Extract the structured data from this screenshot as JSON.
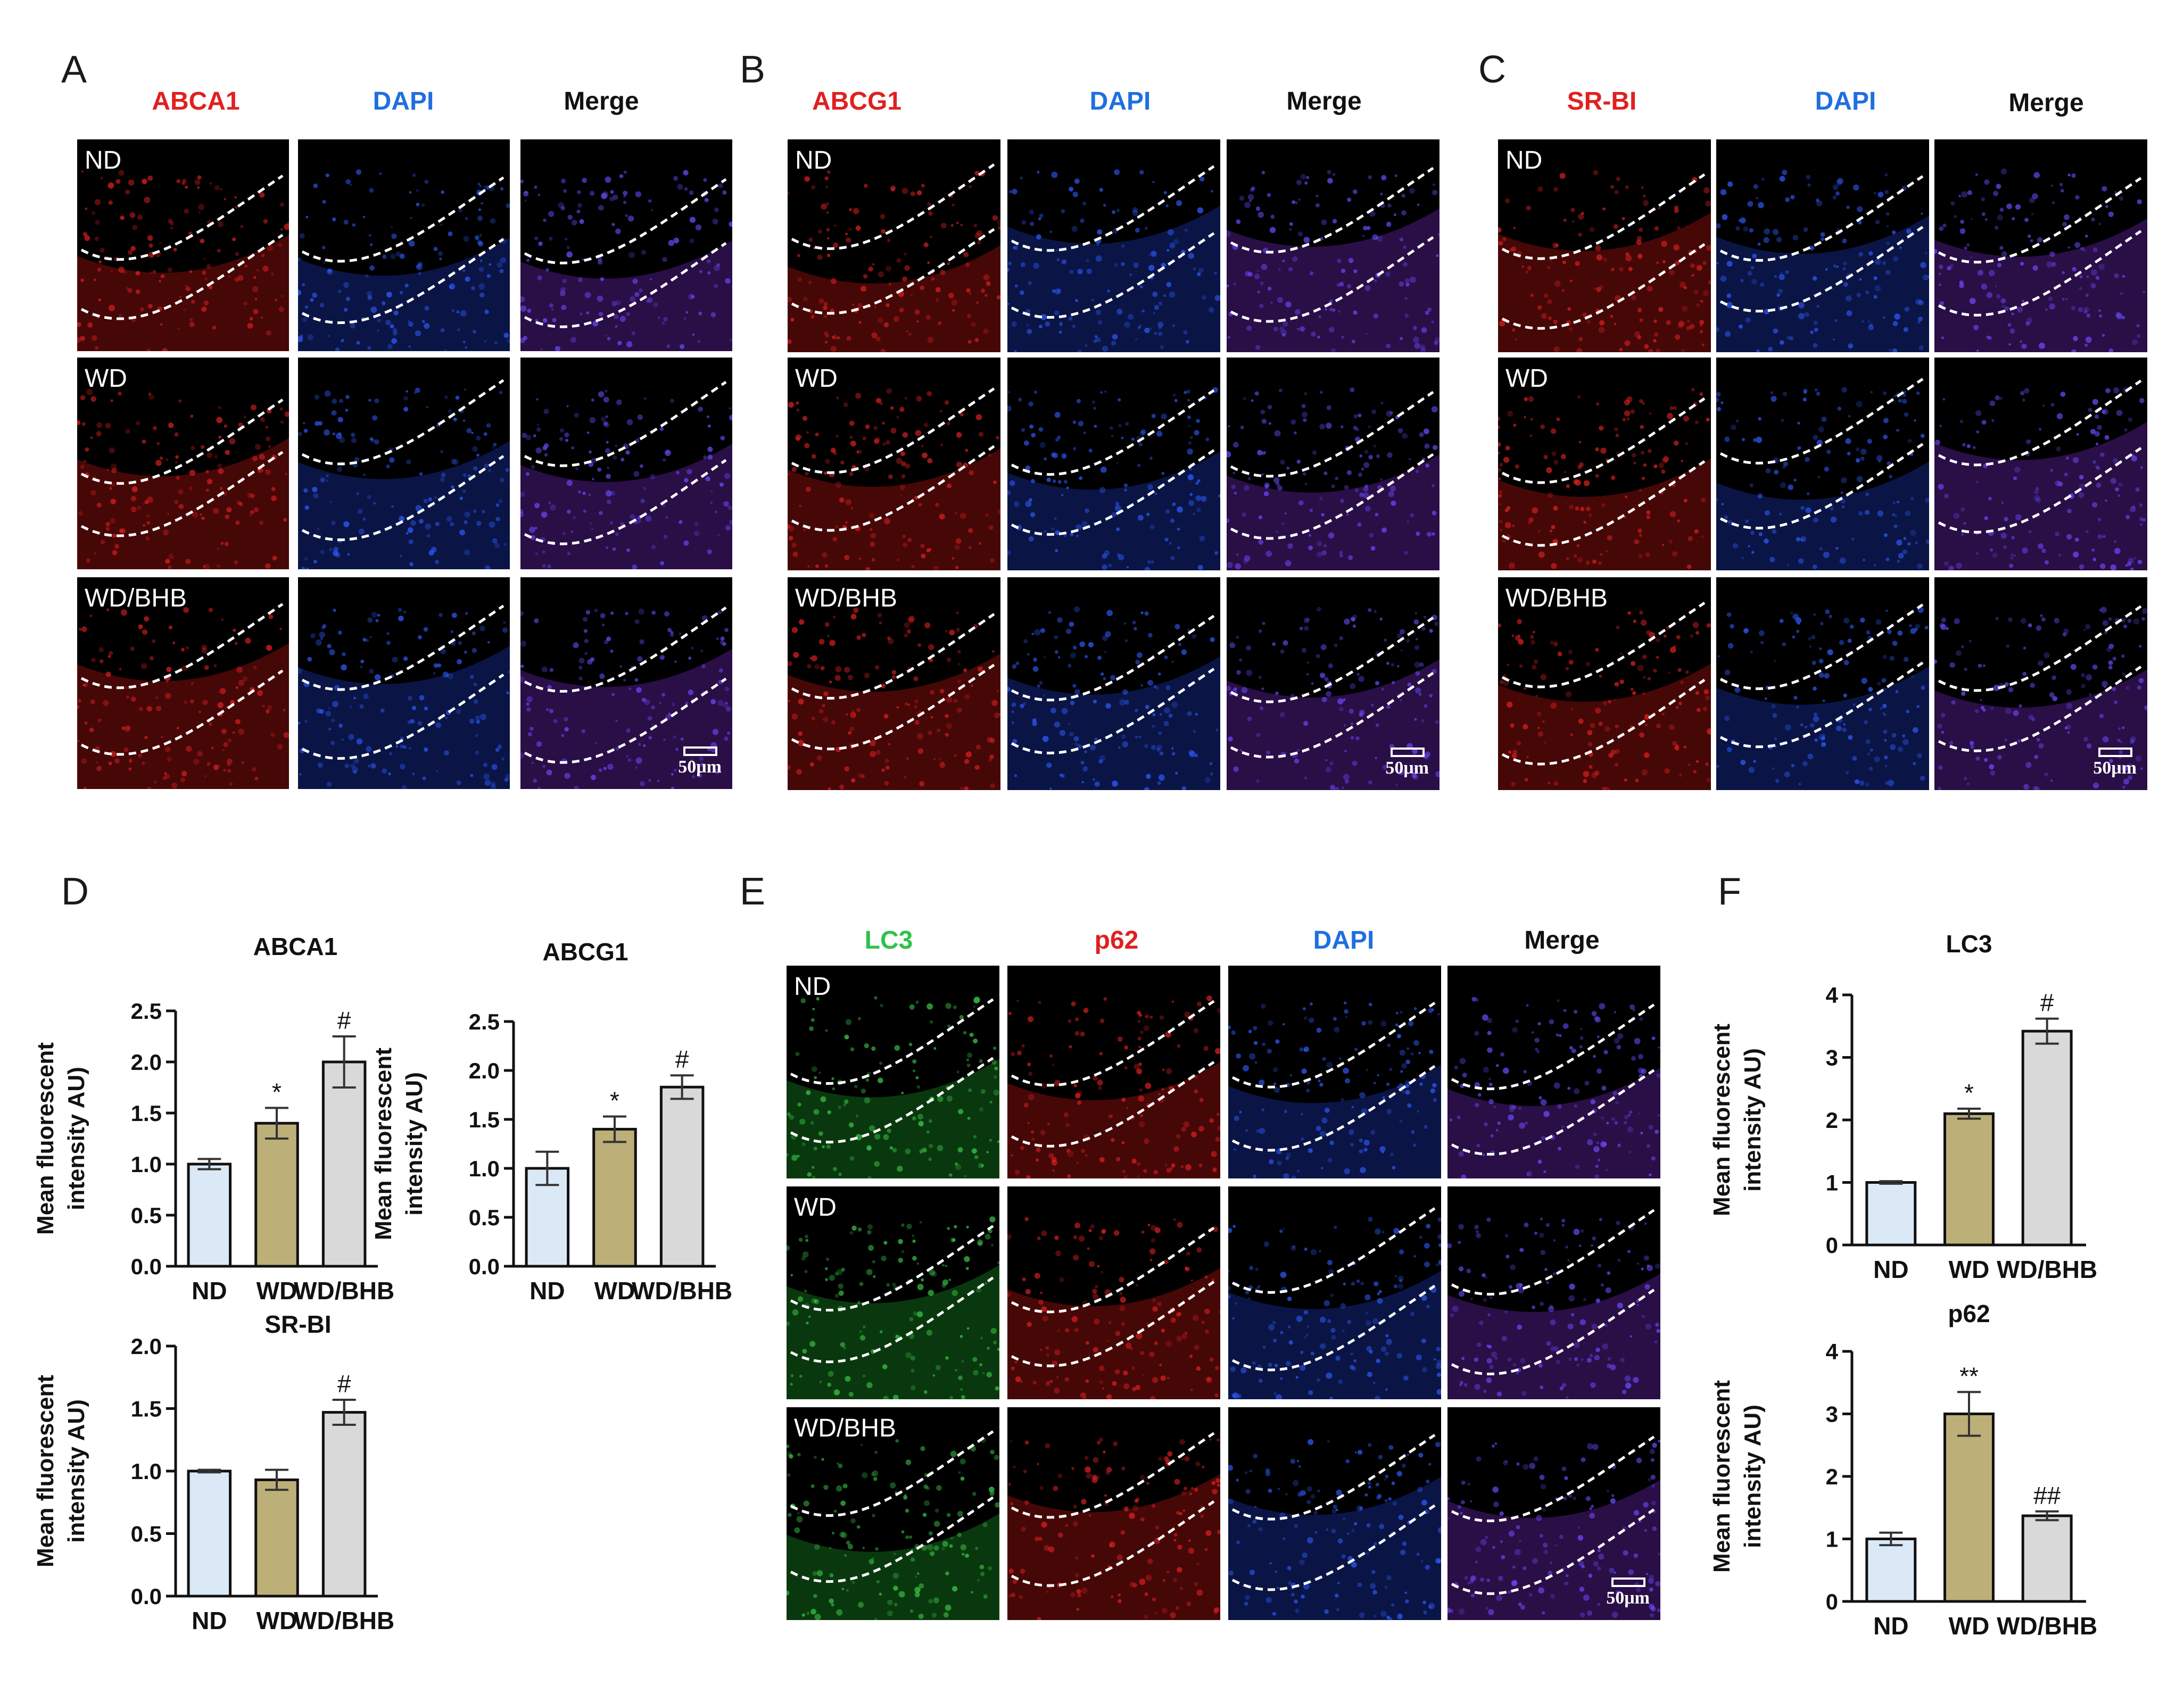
{
  "panels": {
    "A": {
      "letter": "A",
      "columns": [
        "ABCA1",
        "DAPI",
        "Merge"
      ],
      "column_colors": [
        "#e02020",
        "#1f6fe0",
        "#111111"
      ],
      "rows": [
        "ND",
        "WD",
        "WD/BHB"
      ],
      "scale_label": "50μm"
    },
    "B": {
      "letter": "B",
      "columns": [
        "ABCG1",
        "DAPI",
        "Merge"
      ],
      "column_colors": [
        "#e02020",
        "#1f6fe0",
        "#111111"
      ],
      "rows": [
        "ND",
        "WD",
        "WD/BHB"
      ],
      "scale_label": "50μm"
    },
    "C": {
      "letter": "C",
      "columns": [
        "SR-BI",
        "DAPI",
        "Merge"
      ],
      "column_colors": [
        "#e02020",
        "#1f6fe0",
        "#111111"
      ],
      "rows": [
        "ND",
        "WD",
        "WD/BHB"
      ],
      "scale_label": "50μm"
    },
    "D": {
      "letter": "D"
    },
    "E": {
      "letter": "E",
      "columns": [
        "LC3",
        "p62",
        "DAPI",
        "Merge"
      ],
      "column_colors": [
        "#2ec24a",
        "#e02020",
        "#1f6fe0",
        "#111111"
      ],
      "rows": [
        "ND",
        "WD",
        "WD/BHB"
      ],
      "scale_label": "50μm"
    },
    "F": {
      "letter": "F"
    }
  },
  "colors": {
    "ND": "#dbe9f7",
    "WD": "#bcaf78",
    "WDBHB": "#d9d9d9"
  },
  "chart_data": [
    {
      "id": "abca1",
      "type": "bar",
      "title": "ABCA1",
      "categories": [
        "ND",
        "WD",
        "WD/BHB"
      ],
      "values": [
        1.0,
        1.4,
        2.0
      ],
      "errors": [
        0.05,
        0.15,
        0.25
      ],
      "annotations": [
        "",
        "*",
        "#"
      ],
      "ylabel": "Mean fluorescent intensity AU)",
      "ylim": [
        0,
        2.5
      ],
      "yticks": [
        "0.0",
        "0.5",
        "1.0",
        "1.5",
        "2.0",
        "2.5"
      ]
    },
    {
      "id": "abcg1",
      "type": "bar",
      "title": "ABCG1",
      "categories": [
        "ND",
        "WD",
        "WD/BHB"
      ],
      "values": [
        1.0,
        1.4,
        1.83
      ],
      "errors": [
        0.17,
        0.13,
        0.12
      ],
      "annotations": [
        "",
        "*",
        "#"
      ],
      "ylabel": "Mean fluorescent intensity AU)",
      "ylim": [
        0,
        2.5
      ],
      "yticks": [
        "0.0",
        "0.5",
        "1.0",
        "1.5",
        "2.0",
        "2.5"
      ]
    },
    {
      "id": "srbi",
      "type": "bar",
      "title": "SR-BI",
      "categories": [
        "ND",
        "WD",
        "WD/BHB"
      ],
      "values": [
        1.0,
        0.93,
        1.47
      ],
      "errors": [
        0.01,
        0.08,
        0.1
      ],
      "annotations": [
        "",
        "",
        "#"
      ],
      "ylabel": "Mean fluorescent intensity AU)",
      "ylim": [
        0,
        2.0
      ],
      "yticks": [
        "0.0",
        "0.5",
        "1.0",
        "1.5",
        "2.0"
      ]
    },
    {
      "id": "lc3",
      "type": "bar",
      "title": "LC3",
      "categories": [
        "ND",
        "WD",
        "WD/BHB"
      ],
      "values": [
        1.0,
        2.1,
        3.42
      ],
      "errors": [
        0.02,
        0.08,
        0.2
      ],
      "annotations": [
        "",
        "*",
        "#"
      ],
      "ylabel": "Mean fluorescent intensity AU)",
      "ylim": [
        0,
        4
      ],
      "yticks": [
        "0",
        "1",
        "2",
        "3",
        "4"
      ]
    },
    {
      "id": "p62",
      "type": "bar",
      "title": "p62",
      "categories": [
        "ND",
        "WD",
        "WD/BHB"
      ],
      "values": [
        1.0,
        3.0,
        1.37
      ],
      "errors": [
        0.1,
        0.35,
        0.07
      ],
      "annotations": [
        "",
        "**",
        "##"
      ],
      "ylabel": "Mean fluorescent intensity AU)",
      "ylim": [
        0,
        4
      ],
      "yticks": [
        "0",
        "1",
        "2",
        "3",
        "4"
      ]
    }
  ]
}
